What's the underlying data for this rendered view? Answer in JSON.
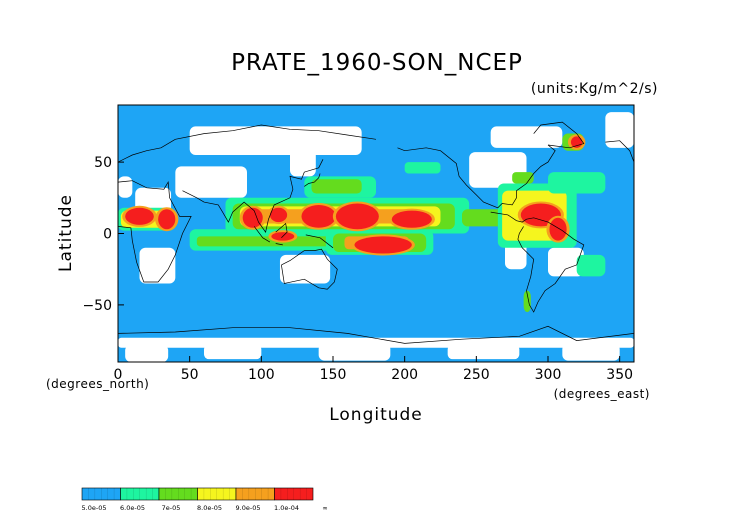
{
  "title": "PRATE_1960-SON_NCEP",
  "units": "(units:Kg/m^2/s)",
  "xlabel": "Longitude",
  "ylabel": "Latitude",
  "x_sublabel": "(degrees_east)",
  "y_sublabel": "(degrees_north)",
  "chart_data": {
    "type": "heatmap",
    "xlim": [
      0,
      360
    ],
    "ylim": [
      -90,
      90
    ],
    "x_ticks": [
      0,
      50,
      100,
      150,
      200,
      250,
      300,
      350
    ],
    "y_ticks": [
      50,
      0,
      -50
    ],
    "x_tick_labels": [
      "0",
      "50",
      "100",
      "150",
      "200",
      "250",
      "300",
      "350"
    ],
    "y_tick_labels": [
      "50",
      "0",
      "−50"
    ],
    "colorbar": {
      "colors": [
        "#1ea5f5",
        "#1ef5a0",
        "#64dc1e",
        "#f5f51e",
        "#f5a01e",
        "#f51e1e"
      ],
      "labels": [
        "5.0e-05",
        "6.0e-05",
        "7e-05",
        "8.0e-05",
        "9.0e-05",
        "1.0e-04",
        "∞"
      ]
    },
    "background_color": "#1ea5f5",
    "missing_color": "#ffffff",
    "regions": [
      {
        "level": 0,
        "lon": 5,
        "lat": -90,
        "w": 30,
        "h": 12
      },
      {
        "level": 0,
        "lon": 60,
        "lat": -88,
        "w": 40,
        "h": 10
      },
      {
        "level": 0,
        "lon": 140,
        "lat": -89,
        "w": 50,
        "h": 12
      },
      {
        "level": 0,
        "lon": 230,
        "lat": -88,
        "w": 50,
        "h": 10
      },
      {
        "level": 0,
        "lon": 310,
        "lat": -89,
        "w": 40,
        "h": 12
      },
      {
        "level": 0,
        "lon": 0,
        "lat": -80,
        "w": 360,
        "h": 7
      },
      {
        "level": 0,
        "lon": 12,
        "lat": 10,
        "w": 25,
        "h": 22
      },
      {
        "level": 0,
        "lon": 40,
        "lat": 25,
        "w": 50,
        "h": 22
      },
      {
        "level": 0,
        "lon": 120,
        "lat": 40,
        "w": 18,
        "h": 22
      },
      {
        "level": 0,
        "lon": 50,
        "lat": 55,
        "w": 120,
        "h": 20
      },
      {
        "level": 0,
        "lon": 15,
        "lat": -35,
        "w": 25,
        "h": 25
      },
      {
        "level": 0,
        "lon": 113,
        "lat": -35,
        "w": 35,
        "h": 20
      },
      {
        "level": 0,
        "lon": 245,
        "lat": 32,
        "w": 40,
        "h": 25
      },
      {
        "level": 0,
        "lon": 260,
        "lat": 60,
        "w": 50,
        "h": 15
      },
      {
        "level": 0,
        "lon": 300,
        "lat": -30,
        "w": 25,
        "h": 20
      },
      {
        "level": 0,
        "lon": 270,
        "lat": -25,
        "w": 15,
        "h": 20
      },
      {
        "level": 0,
        "lon": 340,
        "lat": 60,
        "w": 20,
        "h": 25
      },
      {
        "level": 0,
        "lon": 0,
        "lat": 25,
        "w": 10,
        "h": 15
      },
      {
        "level": 1,
        "lon": 50,
        "lat": -12,
        "w": 110,
        "h": 15
      },
      {
        "level": 2,
        "lon": 55,
        "lat": -9,
        "w": 95,
        "h": 7
      },
      {
        "level": 1,
        "lon": 75,
        "lat": 0,
        "w": 170,
        "h": 25
      },
      {
        "level": 2,
        "lon": 80,
        "lat": 3,
        "w": 155,
        "h": 18
      },
      {
        "level": 3,
        "lon": 85,
        "lat": 5,
        "w": 140,
        "h": 14
      },
      {
        "level": 4,
        "lon": 92,
        "lat": 7,
        "w": 120,
        "h": 10
      },
      {
        "level": 1,
        "lon": 145,
        "lat": -15,
        "w": 75,
        "h": 17
      },
      {
        "level": 2,
        "lon": 150,
        "lat": -13,
        "w": 65,
        "h": 13
      },
      {
        "level": 4,
        "lon": 158,
        "lat": -11,
        "w": 45,
        "h": 9
      },
      {
        "level": 1,
        "lon": 130,
        "lat": 25,
        "w": 50,
        "h": 15
      },
      {
        "level": 2,
        "lon": 135,
        "lat": 28,
        "w": 35,
        "h": 10
      },
      {
        "level": 1,
        "lon": 0,
        "lat": 2,
        "w": 40,
        "h": 16
      },
      {
        "level": 3,
        "lon": 2,
        "lat": 4,
        "w": 35,
        "h": 12
      },
      {
        "level": 2,
        "lon": 240,
        "lat": 5,
        "w": 35,
        "h": 12
      },
      {
        "level": 1,
        "lon": 265,
        "lat": -10,
        "w": 55,
        "h": 45
      },
      {
        "level": 3,
        "lon": 268,
        "lat": -5,
        "w": 45,
        "h": 35
      },
      {
        "level": 1,
        "lon": 300,
        "lat": 28,
        "w": 40,
        "h": 15
      },
      {
        "level": 2,
        "lon": 275,
        "lat": 35,
        "w": 15,
        "h": 8
      },
      {
        "level": 2,
        "lon": 310,
        "lat": 58,
        "w": 15,
        "h": 12
      },
      {
        "level": 1,
        "lon": 200,
        "lat": 42,
        "w": 25,
        "h": 8
      },
      {
        "level": 1,
        "lon": 320,
        "lat": -30,
        "w": 20,
        "h": 15
      },
      {
        "level": 2,
        "lon": 283,
        "lat": -55,
        "w": 5,
        "h": 15
      }
    ],
    "hotspots": [
      {
        "lon": 15,
        "lat": 12,
        "rx": 10,
        "ry": 6
      },
      {
        "lon": 34,
        "lat": 10,
        "rx": 6,
        "ry": 7
      },
      {
        "lon": 94,
        "lat": 11,
        "rx": 7,
        "ry": 7
      },
      {
        "lon": 112,
        "lat": 13,
        "rx": 6,
        "ry": 5
      },
      {
        "lon": 115,
        "lat": -2,
        "rx": 8,
        "ry": 3
      },
      {
        "lon": 140,
        "lat": 12,
        "rx": 12,
        "ry": 8
      },
      {
        "lon": 167,
        "lat": 12,
        "rx": 15,
        "ry": 9
      },
      {
        "lon": 205,
        "lat": 10,
        "rx": 14,
        "ry": 6
      },
      {
        "lon": 185,
        "lat": -8,
        "rx": 20,
        "ry": 6
      },
      {
        "lon": 295,
        "lat": 13,
        "rx": 14,
        "ry": 8
      },
      {
        "lon": 307,
        "lat": 3,
        "rx": 6,
        "ry": 8
      },
      {
        "lon": 320,
        "lat": 64,
        "rx": 4,
        "ry": 4
      }
    ]
  }
}
